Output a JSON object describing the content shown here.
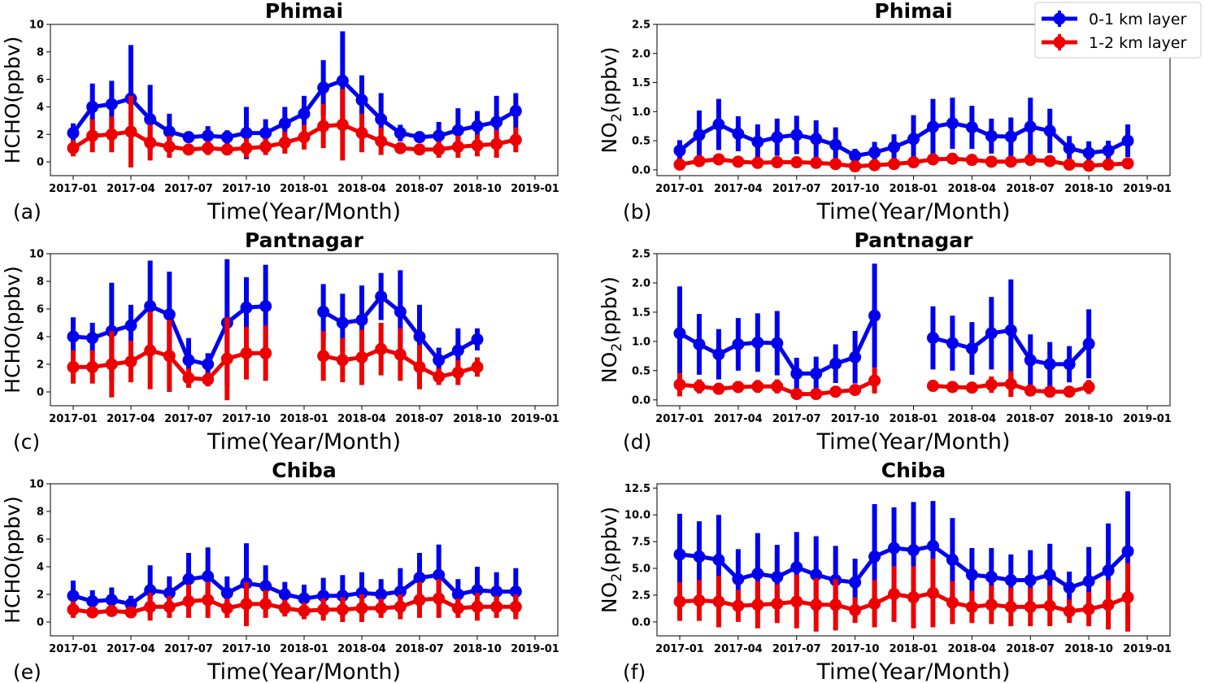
{
  "figure": {
    "legend": {
      "placement": "top-right",
      "entries": [
        {
          "label": "0-1 km layer",
          "color": "#0000ee"
        },
        {
          "label": "1-2 km layer",
          "color": "#ee0000"
        }
      ]
    }
  },
  "chart_data": [
    {
      "panel": "(a)",
      "type": "line",
      "title": "Phimai",
      "xlabel": "Time(Year/Month)",
      "ylabel": "HCHO(ppbv)",
      "ylim": [
        -1,
        10
      ],
      "yticks": [
        0,
        2,
        4,
        6,
        8,
        10
      ],
      "ytick_format": "0",
      "x_start": "2017-01",
      "xticks": [
        "2017-01",
        "2017-04",
        "2017-07",
        "2017-10",
        "2018-01",
        "2018-04",
        "2018-07",
        "2018-10",
        "2019-01"
      ],
      "legend": true,
      "grid": false,
      "series": [
        {
          "name": "0-1 km layer",
          "color": "#0000ee",
          "values": [
            2.1,
            4.0,
            4.2,
            4.6,
            3.1,
            2.2,
            1.8,
            1.9,
            1.8,
            2.1,
            2.1,
            2.8,
            3.5,
            5.4,
            5.9,
            4.5,
            3.1,
            2.1,
            1.8,
            1.9,
            2.3,
            2.6,
            2.9,
            3.7
          ],
          "errors": [
            0.7,
            1.7,
            1.7,
            3.9,
            2.5,
            1.3,
            0.4,
            0.7,
            0.5,
            1.9,
            1.0,
            1.2,
            1.3,
            2.0,
            3.6,
            1.8,
            1.9,
            0.6,
            0.4,
            1.0,
            1.6,
            1.1,
            1.9,
            1.3
          ]
        },
        {
          "name": "1-2 km layer",
          "color": "#ee0000",
          "values": [
            1.0,
            1.9,
            2.0,
            2.2,
            1.4,
            1.1,
            0.9,
            1.0,
            0.9,
            1.0,
            1.1,
            1.4,
            1.8,
            2.6,
            2.7,
            2.1,
            1.5,
            1.0,
            0.9,
            0.9,
            1.1,
            1.2,
            1.3,
            1.6
          ],
          "errors": [
            0.6,
            1.2,
            1.3,
            2.6,
            1.3,
            0.8,
            0.3,
            0.5,
            0.4,
            0.7,
            0.6,
            0.8,
            0.9,
            1.6,
            2.6,
            1.4,
            1.0,
            0.4,
            0.3,
            0.6,
            0.8,
            0.8,
            1.0,
            0.9
          ]
        }
      ]
    },
    {
      "panel": "(b)",
      "type": "line",
      "title": "Phimai",
      "xlabel": "Time(Year/Month)",
      "ylabel": "NO₂(ppbv)",
      "ylim": [
        -0.1,
        2.5
      ],
      "yticks": [
        0,
        0.5,
        1.0,
        1.5,
        2.0,
        2.5
      ],
      "ytick_format": "0.0",
      "x_start": "2017-01",
      "xticks": [
        "2017-01",
        "2017-04",
        "2017-07",
        "2017-10",
        "2018-01",
        "2018-04",
        "2018-07",
        "2018-10",
        "2019-01"
      ],
      "legend": true,
      "grid": false,
      "series": [
        {
          "name": "0-1 km layer",
          "color": "#0000ee",
          "values": [
            0.33,
            0.6,
            0.78,
            0.62,
            0.48,
            0.56,
            0.6,
            0.53,
            0.43,
            0.24,
            0.3,
            0.39,
            0.53,
            0.74,
            0.8,
            0.73,
            0.58,
            0.57,
            0.74,
            0.67,
            0.37,
            0.29,
            0.33,
            0.5
          ],
          "errors": [
            0.18,
            0.42,
            0.44,
            0.3,
            0.3,
            0.32,
            0.33,
            0.32,
            0.3,
            0.12,
            0.18,
            0.22,
            0.41,
            0.48,
            0.44,
            0.37,
            0.3,
            0.33,
            0.5,
            0.38,
            0.21,
            0.2,
            0.17,
            0.28
          ]
        },
        {
          "name": "1-2 km layer",
          "color": "#ee0000",
          "values": [
            0.09,
            0.15,
            0.18,
            0.14,
            0.12,
            0.13,
            0.13,
            0.12,
            0.1,
            0.06,
            0.08,
            0.1,
            0.13,
            0.18,
            0.19,
            0.17,
            0.14,
            0.14,
            0.17,
            0.15,
            0.09,
            0.07,
            0.09,
            0.11
          ],
          "errors": [
            0.04,
            0.08,
            0.09,
            0.06,
            0.05,
            0.06,
            0.06,
            0.06,
            0.05,
            0.03,
            0.04,
            0.05,
            0.07,
            0.09,
            0.09,
            0.08,
            0.06,
            0.06,
            0.08,
            0.07,
            0.04,
            0.03,
            0.04,
            0.05
          ]
        }
      ]
    },
    {
      "panel": "(c)",
      "type": "line",
      "title": "Pantnagar",
      "xlabel": "Time(Year/Month)",
      "ylabel": "HCHO(ppbv)",
      "ylim": [
        -1,
        10
      ],
      "yticks": [
        0,
        2,
        4,
        6,
        8,
        10
      ],
      "ytick_format": "0",
      "x_start": "2017-01",
      "xticks": [
        "2017-01",
        "2017-04",
        "2017-07",
        "2017-10",
        "2018-01",
        "2018-04",
        "2018-07",
        "2018-10",
        "2019-01"
      ],
      "legend": false,
      "grid": false,
      "series": [
        {
          "name": "0-1 km layer",
          "color": "#0000ee",
          "values": [
            4.0,
            3.9,
            4.4,
            4.8,
            6.2,
            5.6,
            2.3,
            2.0,
            5.0,
            6.1,
            6.2,
            null,
            null,
            5.8,
            5.0,
            5.2,
            6.9,
            5.8,
            4.0,
            2.3,
            3.0,
            3.8
          ],
          "errors": [
            1.4,
            1.1,
            3.5,
            1.5,
            3.3,
            3.1,
            1.6,
            0.8,
            4.6,
            2.2,
            3.0,
            null,
            null,
            2.0,
            2.1,
            2.5,
            1.7,
            3.0,
            2.3,
            0.9,
            1.6,
            0.8
          ]
        },
        {
          "name": "1-2 km layer",
          "color": "#ee0000",
          "values": [
            1.8,
            1.8,
            2.0,
            2.2,
            3.0,
            2.6,
            1.0,
            0.9,
            2.4,
            2.8,
            2.8,
            null,
            null,
            2.6,
            2.3,
            2.5,
            3.1,
            2.7,
            1.8,
            1.1,
            1.4,
            1.8
          ],
          "errors": [
            1.2,
            1.2,
            2.4,
            1.5,
            2.8,
            2.6,
            0.7,
            0.5,
            3.0,
            1.9,
            2.0,
            null,
            null,
            1.8,
            1.6,
            2.0,
            1.9,
            1.9,
            1.6,
            0.6,
            0.9,
            0.7
          ]
        }
      ]
    },
    {
      "panel": "(d)",
      "type": "line",
      "title": "Pantnagar",
      "xlabel": "Time(Year/Month)",
      "ylabel": "NO₂(ppbv)",
      "ylim": [
        -0.1,
        2.5
      ],
      "yticks": [
        0,
        0.5,
        1.0,
        1.5,
        2.0,
        2.5
      ],
      "ytick_format": "0.0",
      "x_start": "2017-01",
      "xticks": [
        "2017-01",
        "2017-04",
        "2017-07",
        "2017-10",
        "2018-01",
        "2018-04",
        "2018-07",
        "2018-10",
        "2019-01"
      ],
      "legend": false,
      "grid": false,
      "series": [
        {
          "name": "0-1 km layer",
          "color": "#0000ee",
          "values": [
            1.14,
            0.95,
            0.78,
            0.95,
            0.98,
            0.97,
            0.45,
            0.45,
            0.62,
            0.73,
            1.44,
            null,
            null,
            1.06,
            0.97,
            0.88,
            1.14,
            1.19,
            0.68,
            0.61,
            0.61,
            0.96
          ],
          "errors": [
            0.8,
            0.52,
            0.43,
            0.45,
            0.5,
            0.55,
            0.27,
            0.29,
            0.33,
            0.45,
            0.89,
            null,
            null,
            0.54,
            0.47,
            0.45,
            0.62,
            0.87,
            0.44,
            0.38,
            0.31,
            0.59
          ]
        },
        {
          "name": "1-2 km layer",
          "color": "#ee0000",
          "values": [
            0.26,
            0.23,
            0.19,
            0.22,
            0.23,
            0.23,
            0.1,
            0.1,
            0.14,
            0.17,
            0.33,
            null,
            null,
            0.24,
            0.22,
            0.21,
            0.26,
            0.27,
            0.16,
            0.14,
            0.14,
            0.22
          ],
          "errors": [
            0.2,
            0.12,
            0.08,
            0.1,
            0.11,
            0.12,
            0.05,
            0.05,
            0.07,
            0.09,
            0.22,
            null,
            null,
            0.1,
            0.09,
            0.09,
            0.14,
            0.22,
            0.07,
            0.06,
            0.06,
            0.12
          ]
        }
      ]
    },
    {
      "panel": "(e)",
      "type": "line",
      "title": "Chiba",
      "xlabel": "Time(Year/Month)",
      "ylabel": "HCHO(ppbv)",
      "ylim": [
        -1,
        10
      ],
      "yticks": [
        0,
        2,
        4,
        6,
        8,
        10
      ],
      "ytick_format": "0",
      "x_start": "2017-01",
      "xticks": [
        "2017-01",
        "2017-04",
        "2017-07",
        "2017-10",
        "2018-01",
        "2018-04",
        "2018-07",
        "2018-10",
        "2019-01"
      ],
      "legend": false,
      "grid": false,
      "series": [
        {
          "name": "0-1 km layer",
          "color": "#0000ee",
          "values": [
            1.9,
            1.5,
            1.6,
            1.3,
            2.3,
            2.1,
            3.1,
            3.3,
            2.1,
            2.8,
            2.6,
            2.0,
            1.7,
            1.9,
            1.9,
            2.1,
            2.0,
            2.2,
            3.2,
            3.4,
            2.0,
            2.3,
            2.2,
            2.2
          ],
          "errors": [
            1.1,
            0.8,
            0.9,
            0.6,
            1.8,
            1.2,
            1.9,
            2.1,
            1.2,
            2.9,
            1.5,
            0.9,
            1.0,
            1.3,
            1.5,
            1.5,
            1.1,
            1.7,
            1.8,
            2.2,
            1.1,
            1.7,
            1.4,
            1.7
          ]
        },
        {
          "name": "1-2 km layer",
          "color": "#ee0000",
          "values": [
            0.9,
            0.7,
            0.8,
            0.7,
            1.1,
            1.1,
            1.5,
            1.6,
            1.0,
            1.3,
            1.3,
            1.0,
            0.8,
            0.9,
            0.9,
            1.0,
            1.0,
            1.1,
            1.6,
            1.7,
            1.0,
            1.1,
            1.1,
            1.1
          ],
          "errors": [
            0.6,
            0.4,
            0.4,
            0.3,
            1.0,
            0.8,
            1.2,
            1.3,
            0.7,
            1.6,
            1.0,
            0.6,
            0.6,
            0.8,
            0.9,
            1.0,
            0.7,
            0.9,
            1.3,
            1.4,
            0.7,
            1.0,
            0.8,
            0.9
          ]
        }
      ]
    },
    {
      "panel": "(f)",
      "type": "line",
      "title": "Chiba",
      "xlabel": "Time(Year/Month)",
      "ylabel": "NO₂(ppbv)",
      "ylim": [
        -1.3,
        12.9
      ],
      "yticks": [
        0,
        2.5,
        5.0,
        7.5,
        10.0,
        12.5
      ],
      "ytick_format": "0.0",
      "x_start": "2017-01",
      "xticks": [
        "2017-01",
        "2017-04",
        "2017-07",
        "2017-10",
        "2018-01",
        "2018-04",
        "2018-07",
        "2018-10",
        "2019-01"
      ],
      "legend": false,
      "grid": false,
      "series": [
        {
          "name": "0-1 km layer",
          "color": "#0000ee",
          "values": [
            6.3,
            6.1,
            5.8,
            4.0,
            4.5,
            4.2,
            5.1,
            4.4,
            3.9,
            3.7,
            6.1,
            6.9,
            6.7,
            7.1,
            5.8,
            4.4,
            4.2,
            3.9,
            3.9,
            4.4,
            3.2,
            3.8,
            4.8,
            6.6
          ],
          "errors": [
            3.8,
            3.3,
            4.2,
            2.8,
            3.8,
            3.0,
            3.3,
            3.6,
            3.2,
            2.2,
            4.9,
            3.8,
            4.5,
            4.2,
            3.9,
            2.5,
            2.7,
            2.4,
            2.8,
            2.9,
            1.5,
            3.2,
            4.4,
            5.6
          ]
        },
        {
          "name": "1-2 km layer",
          "color": "#ee0000",
          "values": [
            1.9,
            2.0,
            1.9,
            1.5,
            1.6,
            1.7,
            1.9,
            1.6,
            1.6,
            1.1,
            1.7,
            2.6,
            2.3,
            2.7,
            1.8,
            1.4,
            1.6,
            1.4,
            1.4,
            1.5,
            1.0,
            1.2,
            1.6,
            2.3
          ],
          "errors": [
            1.8,
            1.9,
            2.4,
            1.5,
            2.2,
            1.8,
            2.5,
            2.5,
            2.4,
            1.2,
            2.2,
            2.6,
            2.9,
            3.2,
            2.0,
            1.5,
            1.8,
            1.8,
            1.8,
            1.9,
            1.1,
            1.6,
            2.3,
            3.2
          ]
        }
      ]
    }
  ]
}
